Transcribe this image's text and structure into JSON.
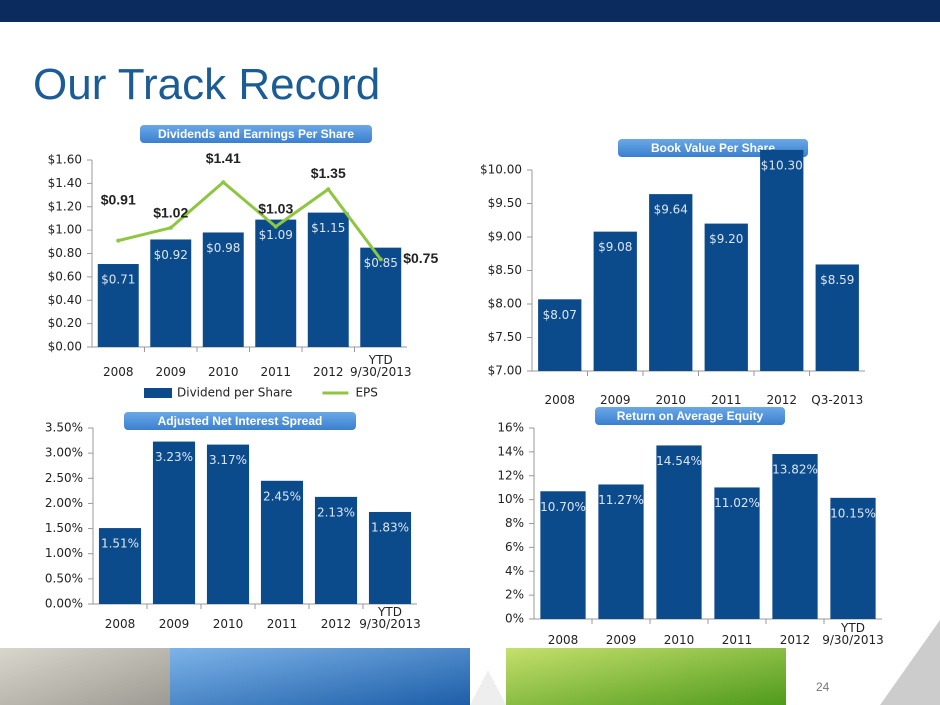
{
  "title": "Our Track Record",
  "page_number": "24",
  "chart_data": [
    {
      "type": "bar",
      "title": "Dividends and Earnings Per Share",
      "categories": [
        "2008",
        "2009",
        "2010",
        "2011",
        "2012",
        "YTD\n9/30/2013"
      ],
      "series": [
        {
          "name": "Dividend per Share",
          "type": "bar",
          "color": "#0b4a8b",
          "values": [
            0.71,
            0.92,
            0.98,
            1.09,
            1.15,
            0.85
          ],
          "value_labels": [
            "$0.71",
            "$0.92",
            "$0.98",
            "$1.09",
            "$1.15",
            "$0.85"
          ]
        },
        {
          "name": "EPS",
          "type": "line",
          "color": "#8dc63f",
          "values": [
            0.91,
            1.02,
            1.41,
            1.03,
            1.35,
            0.75
          ],
          "value_labels": [
            "$0.91",
            "$1.02",
            "$1.41",
            "$1.03",
            "$1.35",
            "$0.75"
          ]
        }
      ],
      "ylim": [
        0,
        1.6
      ],
      "yticks": [
        {
          "value": 0,
          "label": "$0.00"
        },
        {
          "value": 0.2,
          "label": "$0.20"
        },
        {
          "value": 0.4,
          "label": "$0.40"
        },
        {
          "value": 0.6,
          "label": "$0.60"
        },
        {
          "value": 0.8,
          "label": "$0.80"
        },
        {
          "value": 1.0,
          "label": "$1.00"
        },
        {
          "value": 1.2,
          "label": "$1.20"
        },
        {
          "value": 1.4,
          "label": "$1.40"
        },
        {
          "value": 1.6,
          "label": "$1.60"
        }
      ],
      "legend": "bottom"
    },
    {
      "type": "bar",
      "title": "Book Value Per Share",
      "categories": [
        "2008",
        "2009",
        "2010",
        "2011",
        "2012",
        "Q3-2013"
      ],
      "color": "#0b4a8b",
      "values": [
        8.07,
        9.08,
        9.64,
        9.2,
        10.3,
        8.59
      ],
      "value_labels": [
        "$8.07",
        "$9.08",
        "$9.64",
        "$9.20",
        "$10.30",
        "$8.59"
      ],
      "ylim": [
        7,
        10
      ],
      "yticks": [
        {
          "value": 7,
          "label": "$7.00"
        },
        {
          "value": 7.5,
          "label": "$7.50"
        },
        {
          "value": 8,
          "label": "$8.00"
        },
        {
          "value": 8.5,
          "label": "$8.50"
        },
        {
          "value": 9,
          "label": "$9.00"
        },
        {
          "value": 9.5,
          "label": "$9.50"
        },
        {
          "value": 10,
          "label": "$10.00"
        }
      ]
    },
    {
      "type": "bar",
      "title": "Adjusted Net Interest Spread",
      "categories": [
        "2008",
        "2009",
        "2010",
        "2011",
        "2012",
        "YTD\n9/30/2013"
      ],
      "color": "#0b4a8b",
      "values": [
        1.51,
        3.23,
        3.17,
        2.45,
        2.13,
        1.83
      ],
      "value_labels": [
        "1.51%",
        "3.23%",
        "3.17%",
        "2.45%",
        "2.13%",
        "1.83%"
      ],
      "ylim": [
        0,
        3.5
      ],
      "yticks": [
        {
          "value": 0,
          "label": "0.00%"
        },
        {
          "value": 0.5,
          "label": "0.50%"
        },
        {
          "value": 1,
          "label": "1.00%"
        },
        {
          "value": 1.5,
          "label": "1.50%"
        },
        {
          "value": 2,
          "label": "2.00%"
        },
        {
          "value": 2.5,
          "label": "2.50%"
        },
        {
          "value": 3,
          "label": "3.00%"
        },
        {
          "value": 3.5,
          "label": "3.50%"
        }
      ]
    },
    {
      "type": "bar",
      "title": "Return on Average Equity",
      "categories": [
        "2008",
        "2009",
        "2010",
        "2011",
        "2012",
        "YTD\n9/30/2013"
      ],
      "color": "#0b4a8b",
      "values": [
        10.7,
        11.27,
        14.54,
        11.02,
        13.82,
        10.15
      ],
      "value_labels": [
        "10.70%",
        "11.27%",
        "14.54%",
        "11.02%",
        "13.82%",
        "10.15%"
      ],
      "ylim": [
        0,
        16
      ],
      "yticks": [
        {
          "value": 0,
          "label": "0%"
        },
        {
          "value": 2,
          "label": "2%"
        },
        {
          "value": 4,
          "label": "4%"
        },
        {
          "value": 6,
          "label": "6%"
        },
        {
          "value": 8,
          "label": "8%"
        },
        {
          "value": 10,
          "label": "10%"
        },
        {
          "value": 12,
          "label": "12%"
        },
        {
          "value": 14,
          "label": "14%"
        },
        {
          "value": 16,
          "label": "16%"
        }
      ]
    }
  ]
}
